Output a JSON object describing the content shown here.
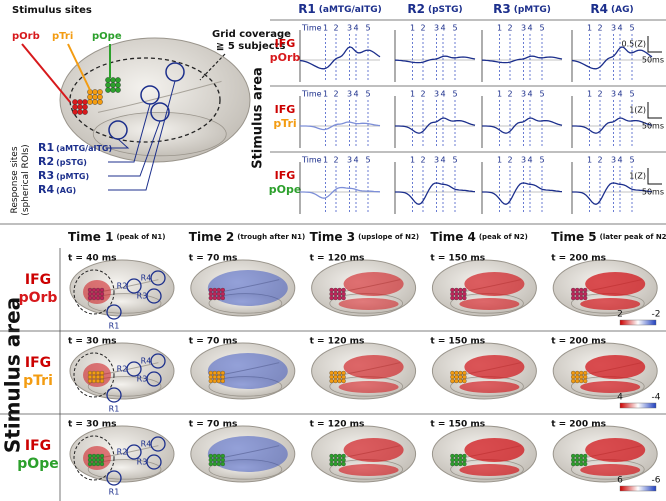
{
  "panel_a": {
    "stimulus_sites_title": "Stimulus sites",
    "stimulus_sites": [
      "pOrb",
      "pTri",
      "pOpe"
    ],
    "grid_coverage": [
      "Grid coverage",
      "≧ 5 subjects"
    ],
    "response_sites_title": [
      "Response sites",
      "(spherical ROIs)"
    ],
    "response_sites": [
      {
        "id": "R1",
        "region": "(aMTG/aITG)"
      },
      {
        "id": "R2",
        "region": "(pSTG)"
      },
      {
        "id": "R3",
        "region": "(pMTG)"
      },
      {
        "id": "R4",
        "region": "(AG)"
      }
    ]
  },
  "panel_b": {
    "columns": [
      {
        "id": "R1",
        "region": "(aMTG/aITG)"
      },
      {
        "id": "R2",
        "region": "(pSTG)"
      },
      {
        "id": "R3",
        "region": "(pMTG)"
      },
      {
        "id": "R4",
        "region": "(AG)"
      }
    ],
    "row_axis_label": "Stimulus area",
    "time_label": "Time",
    "time_marks": [
      "1",
      "2",
      "3",
      "4",
      "5"
    ],
    "rows": [
      {
        "area": "IFG",
        "site": "pOrb",
        "scale_y": "0.5(Z)",
        "scale_x": "50ms"
      },
      {
        "area": "IFG",
        "site": "pTri",
        "scale_y": "1(Z)",
        "scale_x": "50ms"
      },
      {
        "area": "IFG",
        "site": "pOpe",
        "scale_y": "1(Z)",
        "scale_x": "50ms"
      }
    ]
  },
  "panel_c": {
    "row_axis_label": "Stimulus area",
    "roi_labels": [
      "R1",
      "R2",
      "R3",
      "R4"
    ],
    "columns": [
      {
        "time": "Time 1",
        "note": "(peak of N1)"
      },
      {
        "time": "Time 2",
        "note": "(trough after N1)"
      },
      {
        "time": "Time 3",
        "note": "(upslope of N2)"
      },
      {
        "time": "Time 4",
        "note": "(peak of N2)"
      },
      {
        "time": "Time 5",
        "note": "(later peak of N2)"
      }
    ],
    "rows": [
      {
        "area": "IFG",
        "site": "pOrb",
        "times": [
          "t = 40 ms",
          "t = 70 ms",
          "t = 120 ms",
          "t = 150 ms",
          "t = 200 ms"
        ],
        "colorbar": [
          "2",
          "-2"
        ]
      },
      {
        "area": "IFG",
        "site": "pTri",
        "times": [
          "t = 30 ms",
          "t = 70 ms",
          "t = 120 ms",
          "t = 150 ms",
          "t = 200 ms"
        ],
        "colorbar": [
          "4",
          "-4"
        ]
      },
      {
        "area": "IFG",
        "site": "pOpe",
        "times": [
          "t = 30 ms",
          "t = 70 ms",
          "t = 120 ms",
          "t = 150 ms",
          "t = 200 ms"
        ],
        "colorbar": [
          "6",
          "-6"
        ]
      }
    ]
  }
}
